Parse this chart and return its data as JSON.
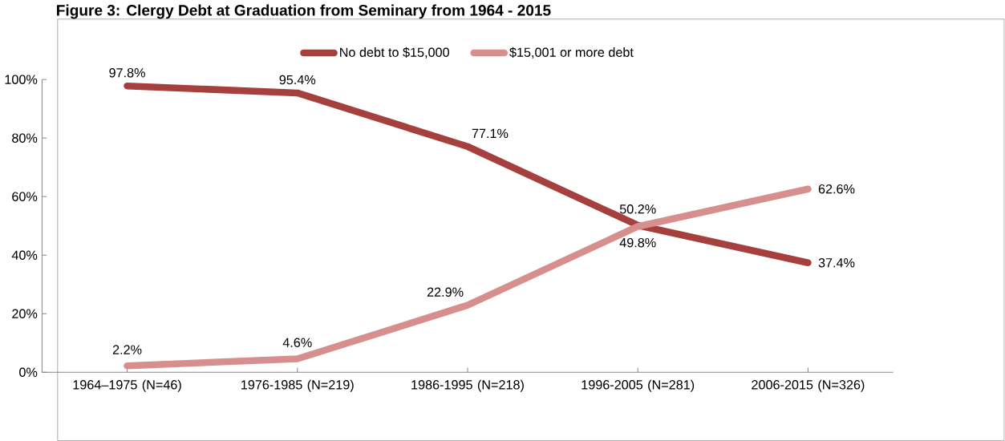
{
  "chart_data": {
    "type": "line",
    "title": "Figure 3: Clergy Debt at Graduation from Seminary from 1964 - 2015",
    "categories": [
      "1964–1975 (N=46)",
      "1976-1985 (N=219)",
      "1986-1995 (N=218)",
      "1996-2005 (N=281)",
      "2006-2015 (N=326)"
    ],
    "series": [
      {
        "name": "No debt to $15,000",
        "color": "#a5403f",
        "values": [
          97.8,
          95.4,
          77.1,
          50.2,
          37.4
        ],
        "value_labels": [
          "97.8%",
          "95.4%",
          "77.1%",
          "50.2%",
          "37.4%"
        ]
      },
      {
        "name": "$15,001 or more debt",
        "color": "#d78f8e",
        "values": [
          2.2,
          4.6,
          22.9,
          49.8,
          62.6
        ],
        "value_labels": [
          "2.2%",
          "4.6%",
          "22.9%",
          "49.8%",
          "62.6%"
        ]
      }
    ],
    "ylim": [
      0,
      100
    ],
    "yticks": [
      {
        "value": 0,
        "label": "0%"
      },
      {
        "value": 20,
        "label": "20%"
      },
      {
        "value": 40,
        "label": "40%"
      },
      {
        "value": 60,
        "label": "60%"
      },
      {
        "value": 80,
        "label": "80%"
      },
      {
        "value": 100,
        "label": "100%"
      }
    ],
    "legend": "top",
    "grid": false,
    "marker": "none",
    "line_style": "solid"
  }
}
